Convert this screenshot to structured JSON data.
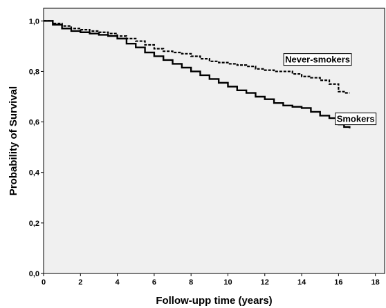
{
  "chart_data": {
    "type": "line",
    "title": "",
    "xlabel": "Follow-upp time (years)",
    "ylabel": "Probability of Survival",
    "xlim": [
      0,
      18.5
    ],
    "ylim": [
      0,
      1.05
    ],
    "x_ticks": [
      0,
      2,
      4,
      6,
      8,
      10,
      12,
      14,
      16,
      18
    ],
    "x_tick_labels": [
      "0",
      "2",
      "4",
      "6",
      "8",
      "10",
      "12",
      "14",
      "16",
      "18"
    ],
    "y_ticks": [
      0,
      0.2,
      0.4,
      0.6,
      0.8,
      1.0
    ],
    "y_tick_labels": [
      "0,0",
      "0,2",
      "0,4",
      "0,6",
      "0,8",
      "1,0"
    ],
    "grid": false,
    "background": "#f0f0f0",
    "series": [
      {
        "name": "Never-smokers",
        "style": "dashed",
        "color": "#000000",
        "step": true,
        "x": [
          0,
          0.5,
          1,
          1.5,
          2,
          2.5,
          3,
          3.5,
          4,
          4.5,
          5,
          5.5,
          6,
          6.5,
          7,
          7.5,
          8,
          8.5,
          9,
          9.5,
          10,
          10.5,
          11,
          11.5,
          12,
          12.5,
          13,
          13.5,
          14,
          14.5,
          15,
          15.5,
          16,
          16.3,
          16.6
        ],
        "values": [
          1.0,
          0.99,
          0.98,
          0.97,
          0.965,
          0.96,
          0.955,
          0.95,
          0.94,
          0.93,
          0.92,
          0.905,
          0.89,
          0.88,
          0.875,
          0.87,
          0.86,
          0.85,
          0.84,
          0.835,
          0.83,
          0.825,
          0.82,
          0.81,
          0.805,
          0.8,
          0.8,
          0.79,
          0.78,
          0.775,
          0.765,
          0.75,
          0.72,
          0.715,
          0.715
        ]
      },
      {
        "name": "Smokers",
        "style": "solid",
        "color": "#000000",
        "step": true,
        "x": [
          0,
          0.5,
          1,
          1.5,
          2,
          2.5,
          3,
          3.5,
          4,
          4.5,
          5,
          5.5,
          6,
          6.5,
          7,
          7.5,
          8,
          8.5,
          9,
          9.5,
          10,
          10.5,
          11,
          11.5,
          12,
          12.5,
          13,
          13.5,
          14,
          14.5,
          15,
          15.5,
          16,
          16.3,
          16.6
        ],
        "values": [
          1.0,
          0.985,
          0.97,
          0.96,
          0.955,
          0.95,
          0.945,
          0.94,
          0.93,
          0.91,
          0.895,
          0.875,
          0.86,
          0.845,
          0.83,
          0.815,
          0.8,
          0.785,
          0.77,
          0.755,
          0.74,
          0.725,
          0.715,
          0.7,
          0.69,
          0.675,
          0.665,
          0.66,
          0.655,
          0.64,
          0.625,
          0.615,
          0.59,
          0.58,
          0.575
        ]
      }
    ],
    "annotations": [
      {
        "text": "Never-smokers",
        "x": 13.1,
        "y": 0.835,
        "boxed": true
      },
      {
        "text": "Smokers",
        "x": 15.9,
        "y": 0.6,
        "boxed": true
      }
    ]
  }
}
